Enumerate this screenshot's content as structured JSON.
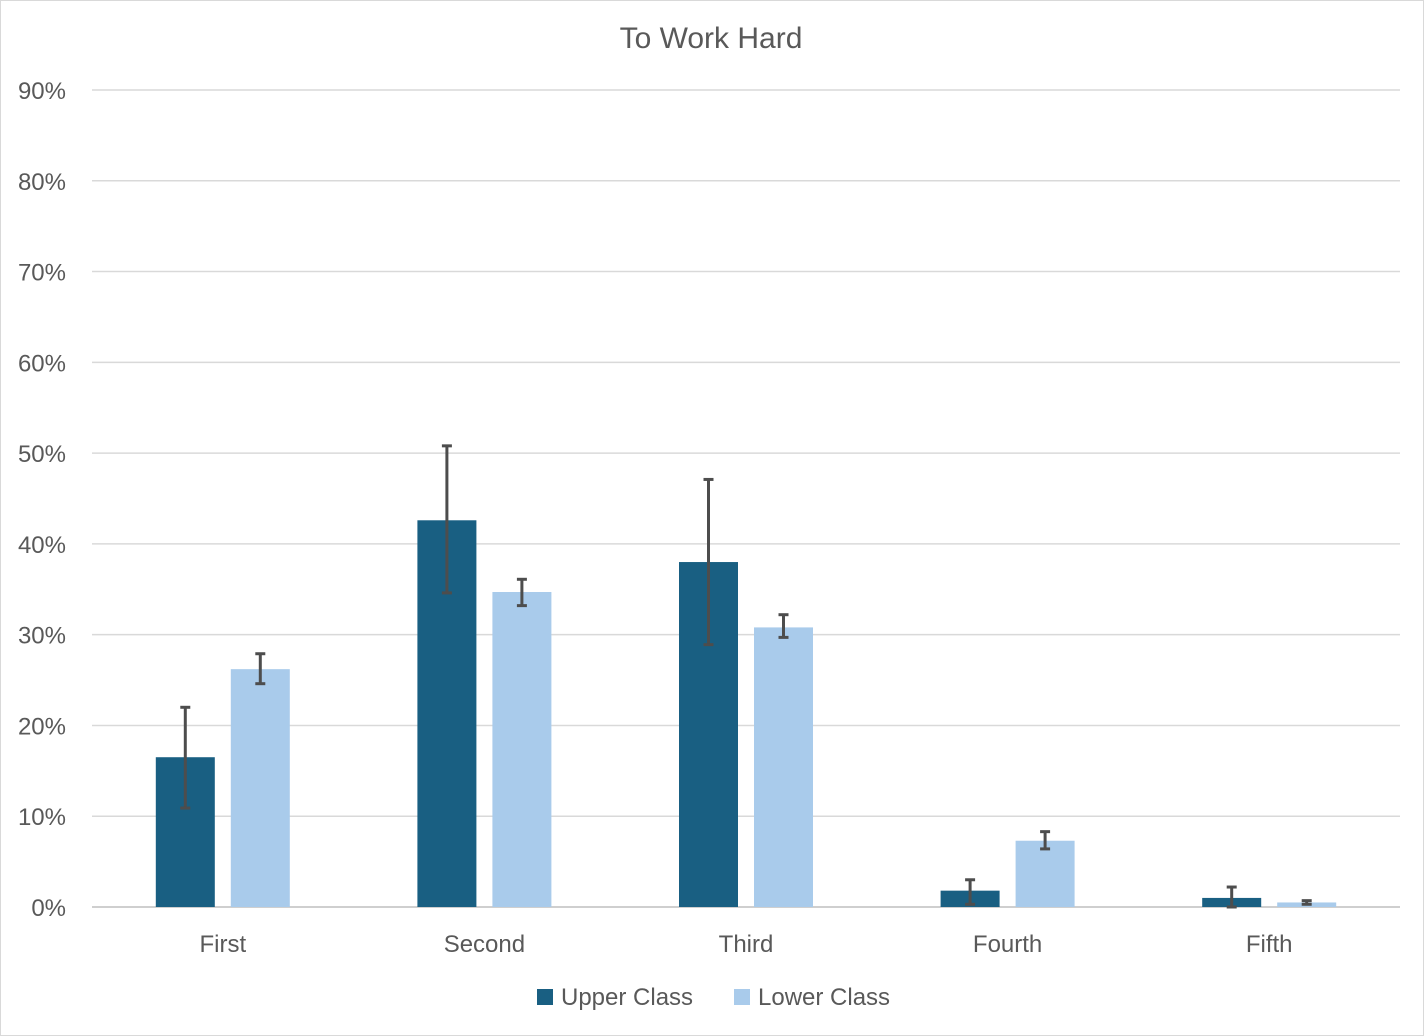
{
  "chart_data": {
    "type": "bar",
    "title": "To Work Hard",
    "xlabel": "",
    "ylabel": "",
    "ylim": [
      0,
      0.9
    ],
    "yticks": [
      0,
      0.1,
      0.2,
      0.3,
      0.4,
      0.5,
      0.6,
      0.7,
      0.8,
      0.9
    ],
    "ytick_labels": [
      "0%",
      "10%",
      "20%",
      "30%",
      "40%",
      "50%",
      "60%",
      "70%",
      "80%",
      "90%"
    ],
    "categories": [
      "First",
      "Second",
      "Third",
      "Fourth",
      "Fifth"
    ],
    "series": [
      {
        "name": "Upper Class",
        "color": "#195f82",
        "values": [
          0.165,
          0.426,
          0.38,
          0.018,
          0.01
        ],
        "error_low": [
          0.109,
          0.346,
          0.289,
          0.003,
          0.0
        ],
        "error_high": [
          0.22,
          0.508,
          0.471,
          0.03,
          0.022
        ]
      },
      {
        "name": "Lower Class",
        "color": "#a9cbeb",
        "values": [
          0.262,
          0.347,
          0.308,
          0.073,
          0.005
        ],
        "error_low": [
          0.246,
          0.332,
          0.297,
          0.064,
          0.003
        ],
        "error_high": [
          0.279,
          0.361,
          0.322,
          0.083,
          0.007
        ]
      }
    ],
    "grid": true,
    "legend": "bottom"
  }
}
